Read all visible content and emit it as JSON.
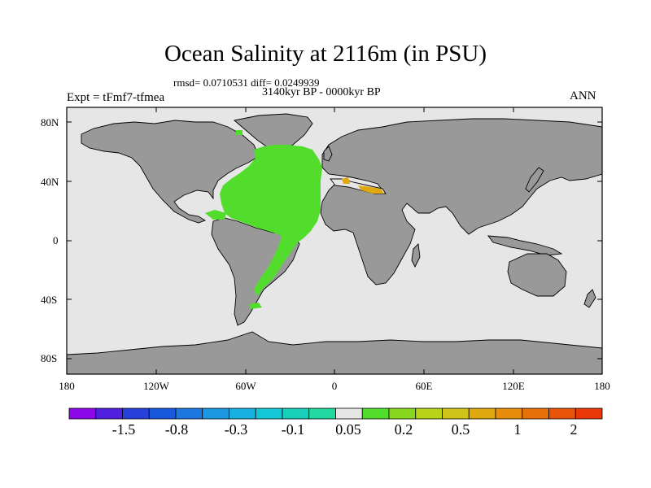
{
  "title": "Ocean Salinity at 2116m (in PSU)",
  "stats_line": "rmsd= 0.0710531 diff= 0.0249939",
  "period": "3140kyr BP - 0000kyr BP",
  "experiment": "Expt = tFmf7-tfmea",
  "season": "ANN",
  "map": {
    "land_color": "#999999",
    "ocean_color": "#e6e6e6",
    "anomaly_color": "#52dc2c",
    "coast_color": "#000000",
    "lat_ticks": [
      "80N",
      "40N",
      "0",
      "40S",
      "80S"
    ],
    "lon_ticks": [
      "180",
      "120W",
      "60W",
      "0",
      "60E",
      "120E",
      "180"
    ]
  },
  "colorbar": {
    "colors": [
      "#8c08e8",
      "#5020e0",
      "#2840dc",
      "#1858dc",
      "#1c78e0",
      "#1c98e0",
      "#18b0e0",
      "#14c8d8",
      "#18d0b8",
      "#20d8a0",
      "#e6e6e6",
      "#52dc2c",
      "#88d820",
      "#b8d418",
      "#d0c418",
      "#e0a810",
      "#e88c0c",
      "#e87008",
      "#e85408",
      "#e83808"
    ],
    "labels": [
      "-1.5",
      "-0.8",
      "-0.3",
      "-0.1",
      "0.05",
      "0.2",
      "0.5",
      "1",
      "2"
    ]
  }
}
